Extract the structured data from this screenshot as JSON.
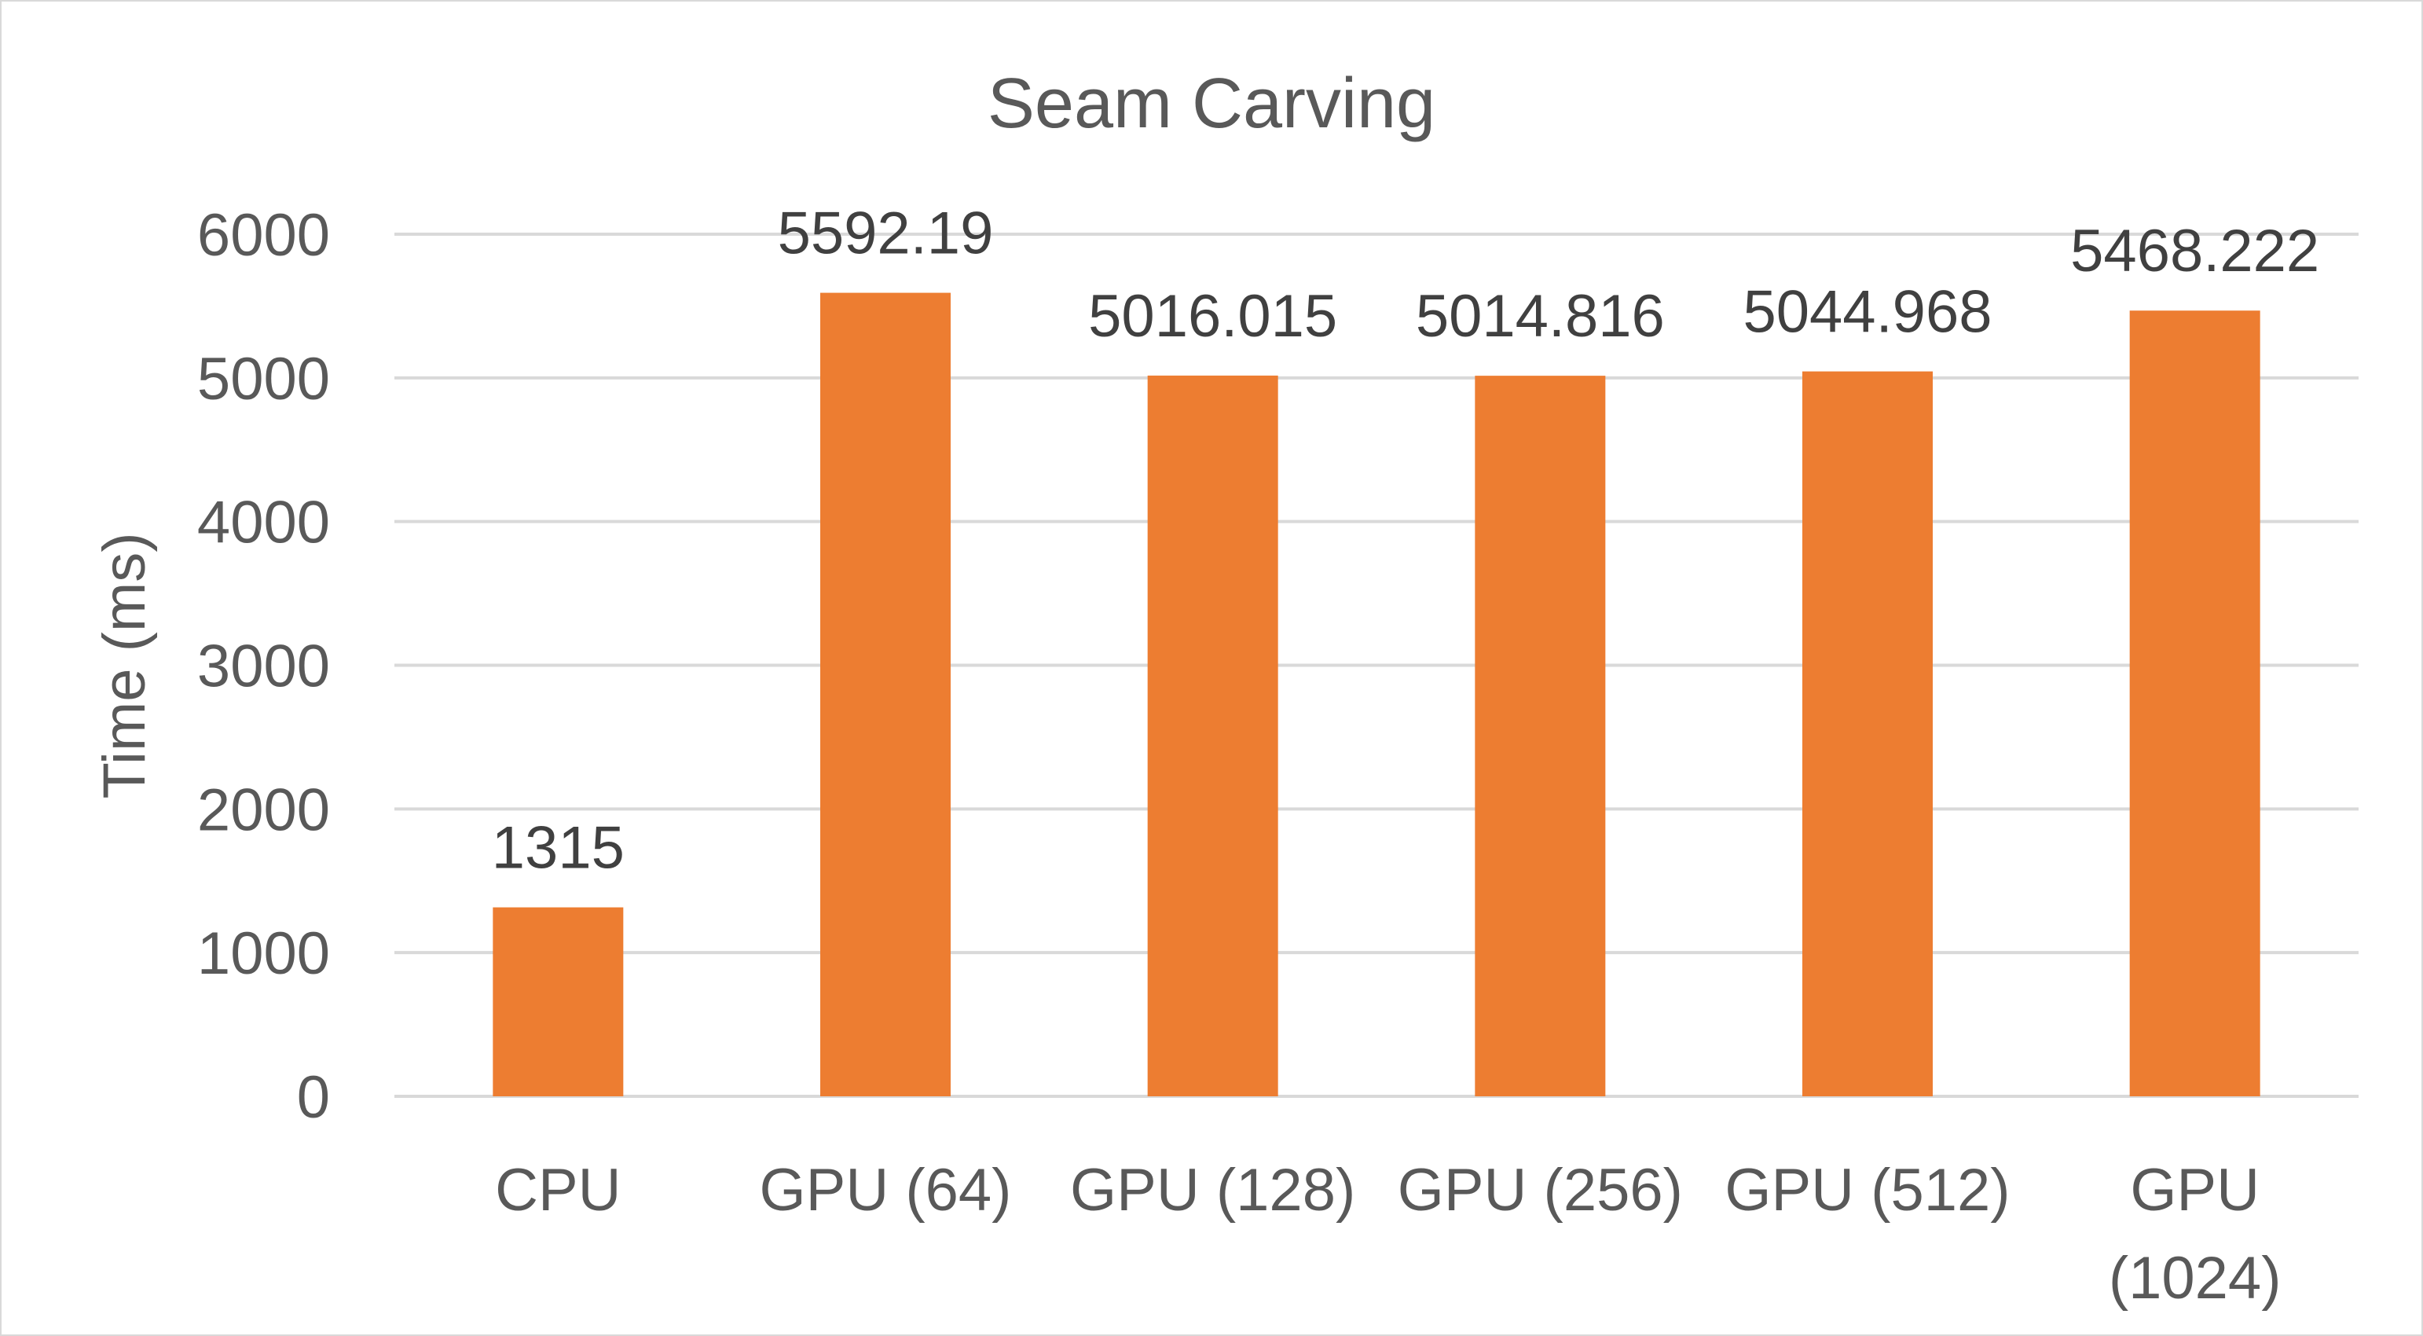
{
  "chart_data": {
    "type": "bar",
    "title": "Seam Carving",
    "xlabel": "",
    "ylabel": "Time (ms)",
    "ylim": [
      0,
      6000
    ],
    "yticks": [
      0,
      1000,
      2000,
      3000,
      4000,
      5000,
      6000
    ],
    "grid": true,
    "legend": "none",
    "categories": [
      [
        "CPU"
      ],
      [
        "GPU (64)"
      ],
      [
        "GPU (128)"
      ],
      [
        "GPU (256)"
      ],
      [
        "GPU (512)"
      ],
      [
        "GPU",
        "(1024)"
      ]
    ],
    "values": [
      1315,
      5592.19,
      5016.015,
      5014.816,
      5044.968,
      5468.222
    ],
    "data_labels": [
      "1315",
      "5592.19",
      "5016.015",
      "5014.816",
      "5044.968",
      "5468.222"
    ],
    "colors": {
      "bar": "#ED7D31",
      "grid": "#d9d9d9",
      "text": "#595959"
    }
  }
}
